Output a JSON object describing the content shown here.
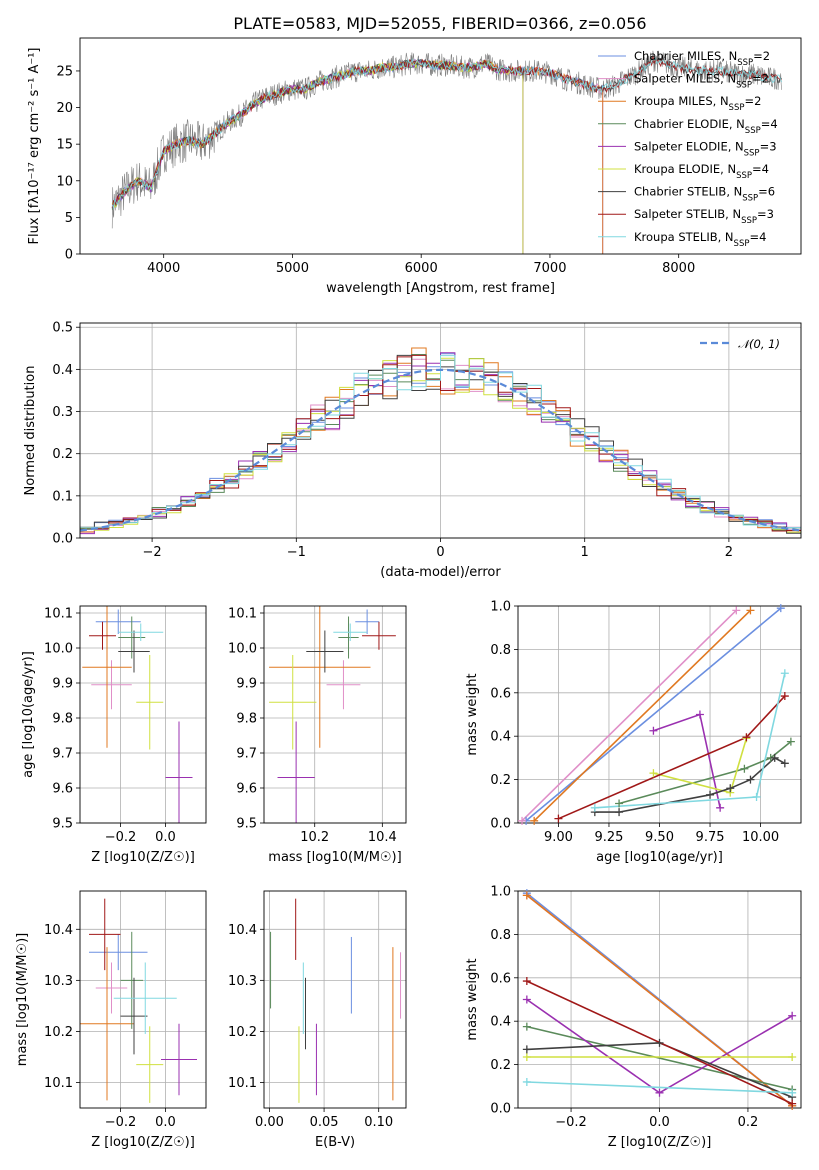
{
  "figure_title": "PLATE=0583, MJD=52055, FIBERID=0366, z=0.056",
  "colors": {
    "Chabrier MILES": "#6b8fe0",
    "Salpeter MILES": "#e08fc8",
    "Kroupa MILES": "#e07820",
    "Chabrier ELODIE": "#5a8a5a",
    "Salpeter ELODIE": "#9a30b0",
    "Kroupa ELODIE": "#d0e040",
    "Chabrier STELIB": "#404040",
    "Salpeter STELIB": "#a01818",
    "Kroupa STELIB": "#80d8e0",
    "grid": "#b0b0b0",
    "data_spectrum": "#808080",
    "normal_curve": "#5a8ad8"
  },
  "chart_data": [
    {
      "id": "spectrum",
      "type": "line",
      "xlabel": "wavelength [Angstrom, rest frame]",
      "ylabel": "Flux [fλ10⁻¹⁷ erg cm⁻² s⁻¹ A⁻¹]",
      "xlim": [
        3350,
        8950
      ],
      "ylim": [
        0,
        29.5
      ],
      "xticks": [
        4000,
        5000,
        6000,
        7000,
        8000
      ],
      "yticks": [
        0,
        5,
        10,
        15,
        20,
        25
      ],
      "grid": false,
      "legend_position": "right",
      "continuum": {
        "x": [
          3600,
          3700,
          3800,
          3900,
          3950,
          4000,
          4100,
          4200,
          4300,
          4400,
          4500,
          4600,
          4700,
          4800,
          4900,
          5000,
          5100,
          5200,
          5300,
          5400,
          5500,
          5600,
          5700,
          5800,
          5900,
          6000,
          6100,
          6200,
          6300,
          6400,
          6500,
          6600,
          6700,
          6800,
          6900,
          7000,
          7100,
          7200,
          7300,
          7400,
          7500,
          7600,
          7700,
          7800,
          7900,
          8000,
          8100,
          8200,
          8300,
          8400,
          8500,
          8600,
          8700,
          8800
        ],
        "y": [
          6.5,
          8.5,
          10.0,
          9.0,
          11.5,
          14.0,
          15.0,
          15.5,
          15.0,
          16.5,
          18.0,
          19.0,
          20.5,
          21.5,
          22.0,
          22.5,
          22.5,
          23.5,
          24.0,
          24.5,
          25.0,
          25.0,
          25.5,
          25.5,
          26.0,
          26.0,
          25.8,
          25.8,
          25.5,
          25.5,
          26.0,
          25.2,
          25.0,
          25.0,
          25.0,
          24.8,
          24.0,
          23.5,
          23.0,
          22.5,
          23.0,
          24.0,
          25.0,
          26.5,
          26.0,
          25.5,
          25.2,
          25.0,
          25.0,
          24.8,
          24.5,
          24.5,
          24.0,
          24.0
        ]
      },
      "legend": [
        {
          "name": "Chabrier MILES",
          "nssp": "2"
        },
        {
          "name": "Salpeter MILES",
          "nssp": "2"
        },
        {
          "name": "Kroupa MILES",
          "nssp": "2"
        },
        {
          "name": "Chabrier ELODIE",
          "nssp": "4"
        },
        {
          "name": "Salpeter ELODIE",
          "nssp": "3"
        },
        {
          "name": "Kroupa ELODIE",
          "nssp": "4"
        },
        {
          "name": "Chabrier STELIB",
          "nssp": "6"
        },
        {
          "name": "Salpeter STELIB",
          "nssp": "3"
        },
        {
          "name": "Kroupa STELIB",
          "nssp": "4"
        }
      ],
      "model_ranges": {
        "MILES": [
          3600,
          7410
        ],
        "ELODIE": [
          3600,
          6790
        ],
        "STELIB": [
          3600,
          8800
        ]
      }
    },
    {
      "id": "residuals",
      "type": "line",
      "xlabel": "(data-model)/error",
      "ylabel": "Normed distribution",
      "xlim": [
        -2.5,
        2.5
      ],
      "ylim": [
        0,
        0.51
      ],
      "xticks": [
        -2,
        -1,
        0,
        1,
        2
      ],
      "yticks": [
        0.0,
        0.1,
        0.2,
        0.3,
        0.4,
        0.5
      ],
      "grid": true,
      "legend_position": "top-right",
      "legend_label": "𝒩(0, 1)",
      "bin_edges_start": -2.5,
      "bin_width": 0.1
    },
    {
      "id": "age_vs_Z",
      "type": "scatter",
      "xlabel": "Z [log10(Z/Z☉)]",
      "ylabel": "age  [log10(age/yr)]",
      "xlim": [
        -0.38,
        0.18
      ],
      "ylim": [
        9.5,
        10.12
      ],
      "xticks": [
        -0.2,
        0.0
      ],
      "yticks": [
        9.5,
        9.6,
        9.7,
        9.8,
        9.9,
        10.0,
        10.1
      ],
      "grid": true,
      "points": [
        {
          "series": "Chabrier MILES",
          "x": -0.21,
          "y": 10.075,
          "ex": 0.1,
          "ey": 0.035
        },
        {
          "series": "Salpeter MILES",
          "x": -0.24,
          "y": 9.895,
          "ex": 0.09,
          "ey": 0.07
        },
        {
          "series": "Kroupa MILES",
          "x": -0.26,
          "y": 9.945,
          "ex": 0.11,
          "ey": 0.23
        },
        {
          "series": "Chabrier ELODIE",
          "x": -0.15,
          "y": 10.03,
          "ex": 0.06,
          "ey": 0.06
        },
        {
          "series": "Salpeter ELODIE",
          "x": 0.06,
          "y": 9.63,
          "ex": 0.06,
          "ey": 0.16
        },
        {
          "series": "Kroupa ELODIE",
          "x": -0.07,
          "y": 9.845,
          "ex": 0.06,
          "ey": 0.135
        },
        {
          "series": "Chabrier STELIB",
          "x": -0.14,
          "y": 9.99,
          "ex": 0.07,
          "ey": 0.06
        },
        {
          "series": "Salpeter STELIB",
          "x": -0.28,
          "y": 10.035,
          "ex": 0.06,
          "ey": 0.04
        },
        {
          "series": "Kroupa STELIB",
          "x": -0.11,
          "y": 10.045,
          "ex": 0.1,
          "ey": 0.025
        }
      ]
    },
    {
      "id": "age_vs_mass",
      "type": "scatter",
      "xlabel": "mass [log10(M/M☉)]",
      "ylabel": "",
      "xlim": [
        10.05,
        10.47
      ],
      "ylim": [
        9.5,
        10.12
      ],
      "xticks": [
        10.2,
        10.4
      ],
      "yticks": [
        9.5,
        9.6,
        9.7,
        9.8,
        9.9,
        10.0,
        10.1
      ],
      "grid": true,
      "points": [
        {
          "series": "Chabrier MILES",
          "x": 10.355,
          "y": 10.075,
          "ex": 0.035,
          "ey": 0.035
        },
        {
          "series": "Salpeter MILES",
          "x": 10.285,
          "y": 9.895,
          "ex": 0.05,
          "ey": 0.07
        },
        {
          "series": "Kroupa MILES",
          "x": 10.215,
          "y": 9.945,
          "ex": 0.15,
          "ey": 0.23
        },
        {
          "series": "Chabrier ELODIE",
          "x": 10.3,
          "y": 10.03,
          "ex": 0.03,
          "ey": 0.06
        },
        {
          "series": "Salpeter ELODIE",
          "x": 10.145,
          "y": 9.63,
          "ex": 0.055,
          "ey": 0.16
        },
        {
          "series": "Kroupa ELODIE",
          "x": 10.135,
          "y": 9.845,
          "ex": 0.07,
          "ey": 0.135
        },
        {
          "series": "Chabrier STELIB",
          "x": 10.23,
          "y": 9.99,
          "ex": 0.055,
          "ey": 0.06
        },
        {
          "series": "Salpeter STELIB",
          "x": 10.39,
          "y": 10.035,
          "ex": 0.05,
          "ey": 0.04
        },
        {
          "series": "Kroupa STELIB",
          "x": 10.305,
          "y": 10.045,
          "ex": 0.05,
          "ey": 0.025
        }
      ]
    },
    {
      "id": "weight_vs_age",
      "type": "line",
      "xlabel": "age  [log10(age/yr)]",
      "ylabel": "mass weight",
      "xlim": [
        8.8,
        10.2
      ],
      "ylim": [
        0,
        1.0
      ],
      "xticks": [
        9.0,
        9.25,
        9.5,
        9.75,
        10.0
      ],
      "yticks": [
        0.0,
        0.2,
        0.4,
        0.6,
        0.8,
        1.0
      ],
      "grid": true,
      "series": [
        {
          "name": "Chabrier MILES",
          "x": [
            8.84,
            10.1
          ],
          "y": [
            0.01,
            0.99
          ]
        },
        {
          "name": "Salpeter MILES",
          "x": [
            8.82,
            9.88
          ],
          "y": [
            0.01,
            0.98
          ]
        },
        {
          "name": "Kroupa MILES",
          "x": [
            8.88,
            9.95
          ],
          "y": [
            0.01,
            0.98
          ]
        },
        {
          "name": "Chabrier ELODIE",
          "x": [
            9.3,
            9.92,
            10.05,
            10.15
          ],
          "y": [
            0.09,
            0.25,
            0.3,
            0.375
          ]
        },
        {
          "name": "Salpeter ELODIE",
          "x": [
            9.47,
            9.7,
            9.8
          ],
          "y": [
            0.425,
            0.5,
            0.07
          ]
        },
        {
          "name": "Kroupa ELODIE",
          "x": [
            9.47,
            9.85,
            9.93
          ],
          "y": [
            0.23,
            0.14,
            0.39
          ]
        },
        {
          "name": "Chabrier STELIB",
          "x": [
            9.18,
            9.3,
            9.75,
            9.85,
            9.95,
            10.07,
            10.12
          ],
          "y": [
            0.05,
            0.05,
            0.13,
            0.16,
            0.2,
            0.3,
            0.275
          ]
        },
        {
          "name": "Salpeter STELIB",
          "x": [
            9.0,
            9.93,
            10.12
          ],
          "y": [
            0.02,
            0.395,
            0.585
          ]
        },
        {
          "name": "Kroupa STELIB",
          "x": [
            9.18,
            9.98,
            10.12
          ],
          "y": [
            0.07,
            0.12,
            0.69
          ]
        }
      ]
    },
    {
      "id": "mass_vs_Z",
      "type": "scatter",
      "xlabel": "Z [log10(Z/Z☉)]",
      "ylabel": "mass [log10(M/M☉)]",
      "xlim": [
        -0.38,
        0.18
      ],
      "ylim": [
        10.05,
        10.475
      ],
      "xticks": [
        -0.2,
        0.0
      ],
      "yticks": [
        10.1,
        10.2,
        10.3,
        10.4
      ],
      "grid": true,
      "points": [
        {
          "series": "Chabrier MILES",
          "x": -0.21,
          "y": 10.355,
          "ex": 0.13,
          "ey": 0.035
        },
        {
          "series": "Salpeter MILES",
          "x": -0.24,
          "y": 10.285,
          "ex": 0.07,
          "ey": 0.05
        },
        {
          "series": "Kroupa MILES",
          "x": -0.26,
          "y": 10.215,
          "ex": 0.12,
          "ey": 0.15
        },
        {
          "series": "Chabrier ELODIE",
          "x": -0.15,
          "y": 10.3,
          "ex": 0.05,
          "ey": 0.095
        },
        {
          "series": "Salpeter ELODIE",
          "x": 0.06,
          "y": 10.145,
          "ex": 0.08,
          "ey": 0.07
        },
        {
          "series": "Kroupa ELODIE",
          "x": -0.07,
          "y": 10.135,
          "ex": 0.06,
          "ey": 0.075
        },
        {
          "series": "Chabrier STELIB",
          "x": -0.14,
          "y": 10.23,
          "ex": 0.06,
          "ey": 0.075
        },
        {
          "series": "Salpeter STELIB",
          "x": -0.27,
          "y": 10.39,
          "ex": 0.07,
          "ey": 0.07
        },
        {
          "series": "Kroupa STELIB",
          "x": -0.09,
          "y": 10.265,
          "ex": 0.14,
          "ey": 0.07
        }
      ]
    },
    {
      "id": "mass_vs_ebv",
      "type": "scatter",
      "xlabel": "E(B-V)",
      "ylabel": "",
      "xlim": [
        -0.005,
        0.125
      ],
      "ylim": [
        10.05,
        10.475
      ],
      "xticks": [
        0.0,
        0.05,
        0.1
      ],
      "yticks": [
        10.1,
        10.2,
        10.3,
        10.4
      ],
      "grid": true,
      "points": [
        {
          "series": "Chabrier MILES",
          "x": 0.075,
          "y": 10.31,
          "ey": 0.075
        },
        {
          "series": "Salpeter MILES",
          "x": 0.12,
          "y": 10.29,
          "ey": 0.065
        },
        {
          "series": "Kroupa MILES",
          "x": 0.113,
          "y": 10.215,
          "ey": 0.15
        },
        {
          "series": "Chabrier ELODIE",
          "x": 0.001,
          "y": 10.32,
          "ey": 0.075
        },
        {
          "series": "Salpeter ELODIE",
          "x": 0.043,
          "y": 10.145,
          "ey": 0.07
        },
        {
          "series": "Kroupa ELODIE",
          "x": 0.027,
          "y": 10.135,
          "ey": 0.075
        },
        {
          "series": "Chabrier STELIB",
          "x": 0.033,
          "y": 10.235,
          "ey": 0.07
        },
        {
          "series": "Salpeter STELIB",
          "x": 0.024,
          "y": 10.4,
          "ey": 0.06
        },
        {
          "series": "Kroupa STELIB",
          "x": 0.031,
          "y": 10.265,
          "ey": 0.07
        }
      ]
    },
    {
      "id": "weight_vs_Z",
      "type": "line",
      "xlabel": "Z [log10(Z/Z☉)]",
      "ylabel": "mass weight",
      "xlim": [
        -0.32,
        0.32
      ],
      "ylim": [
        0,
        1.0
      ],
      "xticks": [
        -0.2,
        0.0,
        0.2
      ],
      "yticks": [
        0.0,
        0.2,
        0.4,
        0.6,
        0.8,
        1.0
      ],
      "grid": true,
      "series": [
        {
          "name": "Chabrier MILES",
          "x": [
            -0.3,
            0.3
          ],
          "y": [
            0.99,
            0.01
          ]
        },
        {
          "name": "Salpeter MILES",
          "x": [
            -0.3,
            0.3
          ],
          "y": [
            0.98,
            0.01
          ]
        },
        {
          "name": "Kroupa MILES",
          "x": [
            -0.3,
            0.3
          ],
          "y": [
            0.98,
            0.01
          ]
        },
        {
          "name": "Chabrier ELODIE",
          "x": [
            -0.3,
            0.3
          ],
          "y": [
            0.375,
            0.085
          ]
        },
        {
          "name": "Salpeter ELODIE",
          "x": [
            -0.3,
            0.0,
            0.3
          ],
          "y": [
            0.5,
            0.07,
            0.425
          ]
        },
        {
          "name": "Kroupa ELODIE",
          "x": [
            -0.3,
            0.3
          ],
          "y": [
            0.235,
            0.235
          ]
        },
        {
          "name": "Chabrier STELIB",
          "x": [
            -0.3,
            0.0,
            0.3
          ],
          "y": [
            0.27,
            0.3,
            0.05
          ]
        },
        {
          "name": "Salpeter STELIB",
          "x": [
            -0.3,
            0.3
          ],
          "y": [
            0.585,
            0.02
          ]
        },
        {
          "name": "Kroupa STELIB",
          "x": [
            -0.3,
            0.3
          ],
          "y": [
            0.12,
            0.07
          ]
        }
      ]
    }
  ]
}
